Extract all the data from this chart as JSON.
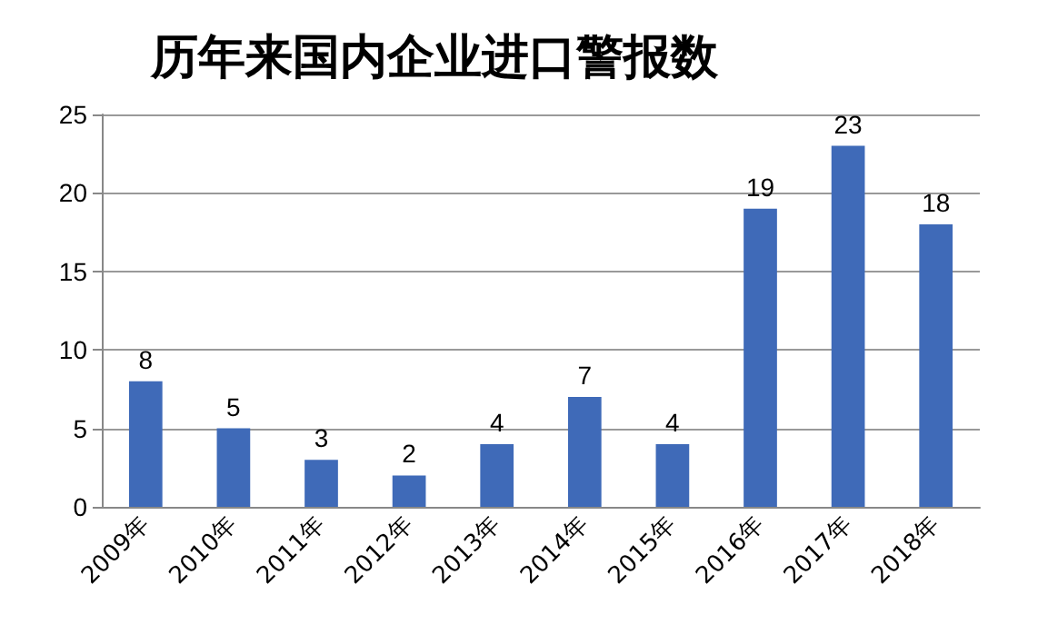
{
  "chart_data": {
    "type": "bar",
    "title": "历年来国内企业进口警报数",
    "categories": [
      "2009年",
      "2010年",
      "2011年",
      "2012年",
      "2013年",
      "2014年",
      "2015年",
      "2016年",
      "2017年",
      "2018年"
    ],
    "values": [
      8,
      5,
      3,
      2,
      4,
      7,
      4,
      19,
      23,
      18
    ],
    "color": "#3f6ab8",
    "ylim": [
      0,
      25
    ],
    "yticks": [
      0,
      5,
      10,
      15,
      20,
      25
    ],
    "grid": "y",
    "data_labels": true
  }
}
